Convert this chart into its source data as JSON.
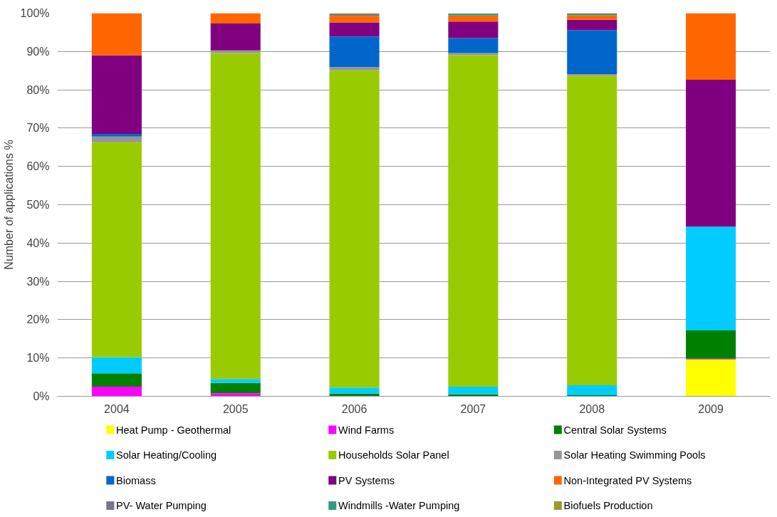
{
  "chart_data": {
    "type": "bar",
    "stacked": true,
    "ylabel": "Number of applications %",
    "categories": [
      "2004",
      "2005",
      "2006",
      "2007",
      "2008",
      "2009"
    ],
    "ylim": [
      0,
      100
    ],
    "yticks": [
      {
        "value": 0,
        "label": "0%"
      },
      {
        "value": 10,
        "label": "10%"
      },
      {
        "value": 20,
        "label": "20%"
      },
      {
        "value": 30,
        "label": "30%"
      },
      {
        "value": 40,
        "label": "40%"
      },
      {
        "value": 50,
        "label": "50%"
      },
      {
        "value": 60,
        "label": "60%"
      },
      {
        "value": 70,
        "label": "70%"
      },
      {
        "value": 80,
        "label": "80%"
      },
      {
        "value": 90,
        "label": "90%"
      },
      {
        "value": 100,
        "label": "100%"
      }
    ],
    "grid": "y",
    "legend": "bottom",
    "series": [
      {
        "name": "Heat Pump - Geothermal",
        "color": "#ffff00",
        "values": [
          0,
          0,
          0,
          0,
          0,
          9.6
        ]
      },
      {
        "name": "Wind Farms",
        "color": "#ff00ff",
        "values": [
          2.5,
          0.8,
          0,
          0,
          0,
          0.2
        ]
      },
      {
        "name": "Central Solar Systems",
        "color": "#008000",
        "values": [
          3.5,
          2.7,
          0.7,
          0.5,
          0.3,
          7.4
        ]
      },
      {
        "name": "Solar Heating/Cooling",
        "color": "#00ccff",
        "values": [
          4.2,
          1.0,
          1.6,
          2.0,
          2.6,
          27.1
        ]
      },
      {
        "name": "Households Solar Panel",
        "color": "#99cc00",
        "values": [
          56.1,
          85.1,
          82.8,
          86.6,
          80.8,
          0
        ]
      },
      {
        "name": "Solar Heating Swimming Pools",
        "color": "#969696",
        "values": [
          1.5,
          0.7,
          0.8,
          0.5,
          0.4,
          0
        ]
      },
      {
        "name": "Biomass",
        "color": "#0066cc",
        "values": [
          0.7,
          0,
          8.0,
          3.9,
          11.5,
          0
        ]
      },
      {
        "name": "PV Systems",
        "color": "#800080",
        "values": [
          20.5,
          7.0,
          3.7,
          4.3,
          2.7,
          38.3
        ]
      },
      {
        "name": "Non-Integrated PV Systems",
        "color": "#ff6600",
        "values": [
          11.0,
          2.7,
          1.7,
          1.6,
          1.2,
          17.4
        ]
      },
      {
        "name": "PV- Water Pumping",
        "color": "#777788",
        "values": [
          0,
          0,
          0.4,
          0,
          0,
          0
        ]
      },
      {
        "name": "Windmills -Water Pumping",
        "color": "#339980",
        "values": [
          0,
          0,
          0,
          0.5,
          0.5,
          0
        ]
      },
      {
        "name": "Biofuels Production",
        "color": "#999933",
        "values": [
          0,
          0,
          0.3,
          0,
          0,
          0
        ]
      }
    ]
  }
}
